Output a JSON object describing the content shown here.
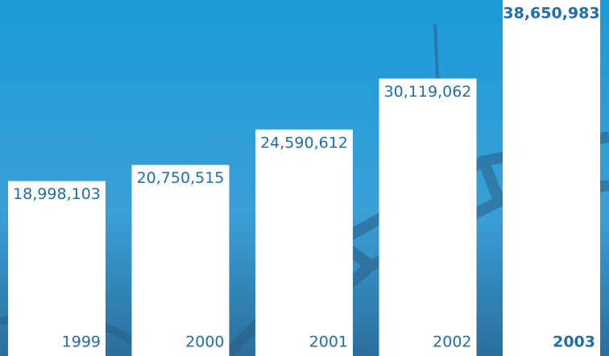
{
  "chart_data": {
    "type": "bar",
    "categories": [
      "1999",
      "2000",
      "2001",
      "2002",
      "2003"
    ],
    "values": [
      18998103,
      20750515,
      24590612,
      30119062,
      38650983
    ],
    "value_labels": [
      "18,998,103",
      "20,750,515",
      "24,590,612",
      "30,119,062",
      "38,650,983"
    ],
    "color": "#ffffff"
  }
}
